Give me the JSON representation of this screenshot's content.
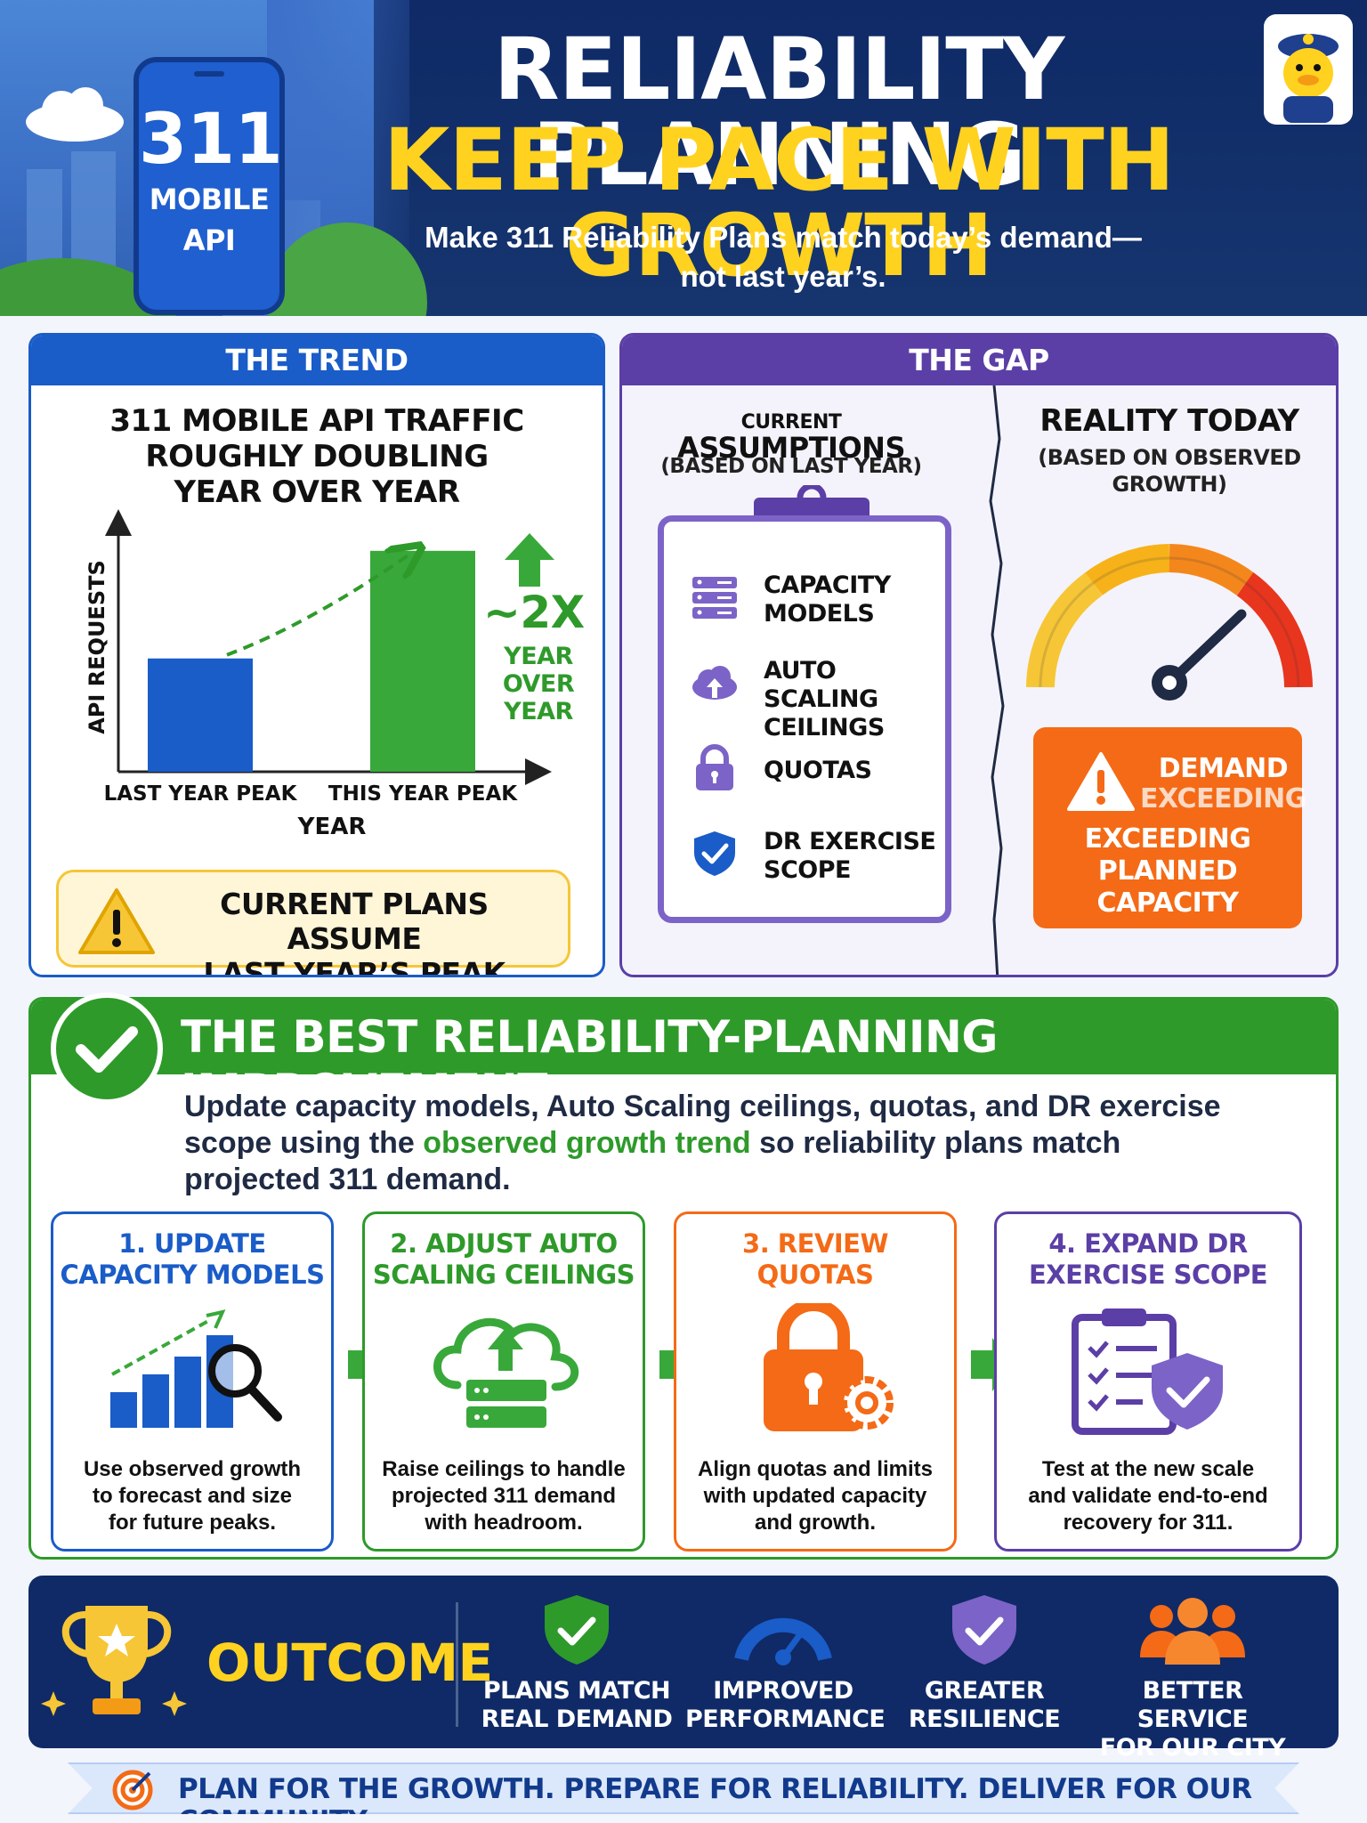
{
  "header": {
    "phone_number": "311",
    "phone_label_1": "MOBILE",
    "phone_label_2": "API",
    "title_line1": "RELIABILITY PLANNING",
    "title_line2": "KEEP PACE WITH GROWTH",
    "subtitle_line1": "Make 311 Reliability Plans match today’s demand—",
    "subtitle_line2": "not last year’s."
  },
  "trend": {
    "heading": "THE TREND",
    "title_1": "311 MOBILE API TRAFFIC",
    "title_2": "ROUGHLY DOUBLING",
    "title_3": "YEAR OVER YEAR",
    "growth": "~2X",
    "growth_sub_1": "YEAR",
    "growth_sub_2": "OVER",
    "growth_sub_3": "YEAR",
    "warning_1": "CURRENT PLANS ASSUME",
    "warning_2": "LAST YEAR’S PEAK"
  },
  "chart_data": {
    "type": "bar",
    "categories": [
      "LAST YEAR PEAK",
      "THIS YEAR PEAK"
    ],
    "values": [
      1,
      1.95
    ],
    "xlabel": "YEAR",
    "ylabel": "API REQUESTS",
    "ylim": [
      0,
      2.2
    ],
    "colors": [
      "#1a5cc8",
      "#39a83a"
    ]
  },
  "gap": {
    "heading": "THE GAP",
    "left_title_1": "CURRENT",
    "left_title_2": "ASSUMPTIONS",
    "left_sub": "(BASED ON LAST YEAR)",
    "right_title": "REALITY TODAY",
    "right_sub_1": "(BASED ON OBSERVED",
    "right_sub_2": "GROWTH)",
    "items": [
      {
        "icon": "server-icon",
        "label_1": "CAPACITY",
        "label_2": "MODELS"
      },
      {
        "icon": "cloud-upload-icon",
        "label_1": "AUTO SCALING",
        "label_2": "CEILINGS"
      },
      {
        "icon": "lock-icon",
        "label_1": "QUOTAS",
        "label_2": ""
      },
      {
        "icon": "shield-check-icon",
        "label_1": "DR EXERCISE",
        "label_2": "SCOPE"
      }
    ],
    "demand_1": "DEMAND",
    "demand_2": "EXCEEDING",
    "demand_3": "EXCEEDING",
    "demand_4": "PLANNED",
    "demand_5": "CAPACITY"
  },
  "best": {
    "title": "THE BEST RELIABILITY-PLANNING IMPROVEMENT",
    "desc_1": "Update capacity models, Auto Scaling ceilings, quotas, and DR exercise scope using the ",
    "desc_highlight": "observed growth trend",
    "desc_2": " so reliability plans match projected 311 demand.",
    "steps": [
      {
        "title_1": "1. UPDATE",
        "title_2": "CAPACITY MODELS",
        "desc_1": "Use observed growth",
        "desc_2": "to forecast and size",
        "desc_3": "for future peaks.",
        "color": "#1a5cc8"
      },
      {
        "title_1": "2. ADJUST AUTO",
        "title_2": "SCALING CEILINGS",
        "desc_1": "Raise ceilings to handle",
        "desc_2": "projected 311 demand",
        "desc_3": "with headroom.",
        "color": "#2e9a2a"
      },
      {
        "title_1": "3. REVIEW",
        "title_2": "QUOTAS",
        "desc_1": "Align quotas and limits",
        "desc_2": "with updated capacity",
        "desc_3": "and growth.",
        "color": "#f46a16"
      },
      {
        "title_1": "4. EXPAND DR",
        "title_2": "EXERCISE SCOPE",
        "desc_1": "Test at the new scale",
        "desc_2": "and validate end-to-end",
        "desc_3": "recovery for 311.",
        "color": "#5b3fa6"
      }
    ]
  },
  "outcome": {
    "label": "OUTCOME",
    "items": [
      {
        "icon": "shield-check-icon",
        "label_1": "PLANS MATCH",
        "label_2": "REAL DEMAND"
      },
      {
        "icon": "speedometer-icon",
        "label_1": "IMPROVED",
        "label_2": "PERFORMANCE"
      },
      {
        "icon": "shield-check-icon",
        "label_1": "GREATER",
        "label_2": "RESILIENCE"
      },
      {
        "icon": "people-icon",
        "label_1": "BETTER SERVICE",
        "label_2": "FOR OUR CITY"
      }
    ]
  },
  "footer": {
    "text": "PLAN FOR THE GROWTH. PREPARE FOR RELIABILITY. DELIVER FOR OUR COMMUNITY."
  }
}
